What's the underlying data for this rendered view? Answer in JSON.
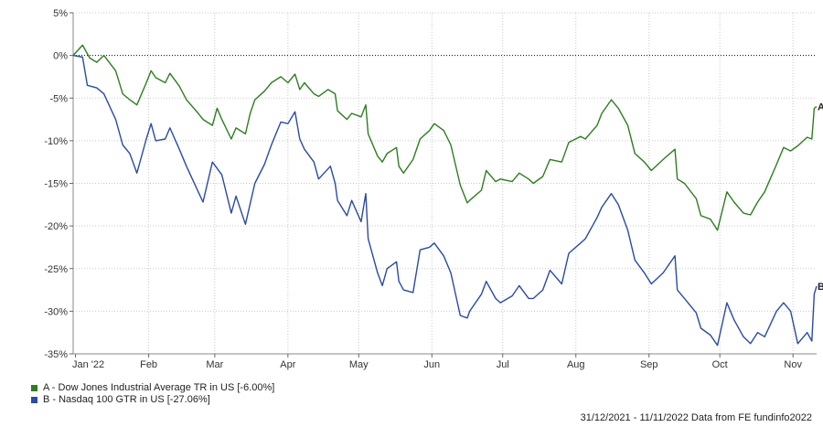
{
  "chart_data": {
    "type": "line",
    "ylim": [
      -35,
      5
    ],
    "y_ticks": [
      "5%",
      "0%",
      "-5%",
      "-10%",
      "-15%",
      "-20%",
      "-25%",
      "-30%",
      "-35%"
    ],
    "x_ticks": [
      "Jan '22",
      "Feb",
      "Mar",
      "Apr",
      "May",
      "Jun",
      "Jul",
      "Aug",
      "Sep",
      "Oct",
      "Nov"
    ],
    "grid": true,
    "zero_line": "dotted",
    "legend_position": "bottom-left",
    "series": [
      {
        "name": "A - Dow Jones Industrial Average TR in US [-6.00%]",
        "end_label": "A",
        "color": "#2e7d1f",
        "points": [
          [
            "2021-12-31",
            0
          ],
          [
            "2022-01-04",
            1.2
          ],
          [
            "2022-01-07",
            -0.3
          ],
          [
            "2022-01-10",
            -0.8
          ],
          [
            "2022-01-13",
            0
          ],
          [
            "2022-01-18",
            -1.8
          ],
          [
            "2022-01-21",
            -4.5
          ],
          [
            "2022-01-24",
            -5.2
          ],
          [
            "2022-01-27",
            -5.8
          ],
          [
            "2022-01-31",
            -3.2
          ],
          [
            "2022-02-02",
            -1.8
          ],
          [
            "2022-02-04",
            -2.6
          ],
          [
            "2022-02-08",
            -3.2
          ],
          [
            "2022-02-10",
            -2.1
          ],
          [
            "2022-02-14",
            -3.6
          ],
          [
            "2022-02-17",
            -5.2
          ],
          [
            "2022-02-22",
            -6.8
          ],
          [
            "2022-02-24",
            -7.5
          ],
          [
            "2022-02-28",
            -8.2
          ],
          [
            "2022-03-02",
            -6.2
          ],
          [
            "2022-03-04",
            -7.5
          ],
          [
            "2022-03-08",
            -9.8
          ],
          [
            "2022-03-10",
            -8.5
          ],
          [
            "2022-03-14",
            -9.2
          ],
          [
            "2022-03-16",
            -6.8
          ],
          [
            "2022-03-18",
            -5.2
          ],
          [
            "2022-03-22",
            -4.2
          ],
          [
            "2022-03-25",
            -3.2
          ],
          [
            "2022-03-29",
            -2.5
          ],
          [
            "2022-04-01",
            -3.2
          ],
          [
            "2022-04-04",
            -2.2
          ],
          [
            "2022-04-06",
            -4.0
          ],
          [
            "2022-04-08",
            -3.2
          ],
          [
            "2022-04-12",
            -4.5
          ],
          [
            "2022-04-14",
            -4.8
          ],
          [
            "2022-04-18",
            -4.0
          ],
          [
            "2022-04-21",
            -4.5
          ],
          [
            "2022-04-22",
            -6.5
          ],
          [
            "2022-04-26",
            -7.5
          ],
          [
            "2022-04-28",
            -6.8
          ],
          [
            "2022-05-02",
            -7.2
          ],
          [
            "2022-05-04",
            -5.8
          ],
          [
            "2022-05-05",
            -9.2
          ],
          [
            "2022-05-09",
            -11.8
          ],
          [
            "2022-05-11",
            -12.5
          ],
          [
            "2022-05-13",
            -11.5
          ],
          [
            "2022-05-17",
            -10.8
          ],
          [
            "2022-05-18",
            -13.0
          ],
          [
            "2022-05-20",
            -13.8
          ],
          [
            "2022-05-24",
            -12.2
          ],
          [
            "2022-05-27",
            -9.8
          ],
          [
            "2022-05-31",
            -8.8
          ],
          [
            "2022-06-02",
            -8.0
          ],
          [
            "2022-06-06",
            -8.8
          ],
          [
            "2022-06-09",
            -10.5
          ],
          [
            "2022-06-13",
            -15.2
          ],
          [
            "2022-06-16",
            -17.3
          ],
          [
            "2022-06-17",
            -17.0
          ],
          [
            "2022-06-22",
            -15.8
          ],
          [
            "2022-06-24",
            -13.5
          ],
          [
            "2022-06-28",
            -14.8
          ],
          [
            "2022-06-30",
            -14.5
          ],
          [
            "2022-07-05",
            -14.8
          ],
          [
            "2022-07-08",
            -13.8
          ],
          [
            "2022-07-12",
            -14.5
          ],
          [
            "2022-07-14",
            -15.0
          ],
          [
            "2022-07-18",
            -14.2
          ],
          [
            "2022-07-21",
            -12.2
          ],
          [
            "2022-07-26",
            -12.5
          ],
          [
            "2022-07-29",
            -10.2
          ],
          [
            "2022-08-03",
            -9.5
          ],
          [
            "2022-08-05",
            -9.8
          ],
          [
            "2022-08-10",
            -8.2
          ],
          [
            "2022-08-12",
            -6.8
          ],
          [
            "2022-08-16",
            -5.2
          ],
          [
            "2022-08-19",
            -6.2
          ],
          [
            "2022-08-23",
            -8.2
          ],
          [
            "2022-08-26",
            -11.5
          ],
          [
            "2022-08-30",
            -12.5
          ],
          [
            "2022-09-02",
            -13.5
          ],
          [
            "2022-09-07",
            -12.2
          ],
          [
            "2022-09-12",
            -11.0
          ],
          [
            "2022-09-13",
            -14.5
          ],
          [
            "2022-09-16",
            -15.0
          ],
          [
            "2022-09-21",
            -16.8
          ],
          [
            "2022-09-23",
            -18.8
          ],
          [
            "2022-09-27",
            -19.2
          ],
          [
            "2022-09-30",
            -20.5
          ],
          [
            "2022-10-04",
            -16.0
          ],
          [
            "2022-10-07",
            -17.2
          ],
          [
            "2022-10-11",
            -18.5
          ],
          [
            "2022-10-14",
            -18.7
          ],
          [
            "2022-10-17",
            -17.2
          ],
          [
            "2022-10-20",
            -16.0
          ],
          [
            "2022-10-25",
            -12.8
          ],
          [
            "2022-10-28",
            -10.8
          ],
          [
            "2022-10-31",
            -11.2
          ],
          [
            "2022-11-03",
            -10.6
          ],
          [
            "2022-11-07",
            -9.6
          ],
          [
            "2022-11-09",
            -9.8
          ],
          [
            "2022-11-10",
            -6.2
          ],
          [
            "2022-11-11",
            -6.0
          ]
        ]
      },
      {
        "name": "B - Nasdaq 100 GTR in US [-27.06%]",
        "end_label": "B",
        "color": "#2a4aa5",
        "points": [
          [
            "2021-12-31",
            0
          ],
          [
            "2022-01-04",
            -0.2
          ],
          [
            "2022-01-06",
            -3.5
          ],
          [
            "2022-01-10",
            -3.8
          ],
          [
            "2022-01-13",
            -4.5
          ],
          [
            "2022-01-18",
            -7.5
          ],
          [
            "2022-01-21",
            -10.5
          ],
          [
            "2022-01-24",
            -11.5
          ],
          [
            "2022-01-27",
            -13.8
          ],
          [
            "2022-01-31",
            -9.8
          ],
          [
            "2022-02-02",
            -8.0
          ],
          [
            "2022-02-04",
            -10.0
          ],
          [
            "2022-02-08",
            -9.8
          ],
          [
            "2022-02-10",
            -8.5
          ],
          [
            "2022-02-14",
            -11.0
          ],
          [
            "2022-02-17",
            -13.0
          ],
          [
            "2022-02-22",
            -16.0
          ],
          [
            "2022-02-24",
            -17.2
          ],
          [
            "2022-02-28",
            -12.5
          ],
          [
            "2022-03-04",
            -14.0
          ],
          [
            "2022-03-08",
            -18.5
          ],
          [
            "2022-03-10",
            -16.5
          ],
          [
            "2022-03-14",
            -19.8
          ],
          [
            "2022-03-18",
            -15.0
          ],
          [
            "2022-03-22",
            -12.8
          ],
          [
            "2022-03-25",
            -10.5
          ],
          [
            "2022-03-29",
            -7.8
          ],
          [
            "2022-04-01",
            -8.0
          ],
          [
            "2022-04-04",
            -6.6
          ],
          [
            "2022-04-06",
            -9.8
          ],
          [
            "2022-04-08",
            -11.0
          ],
          [
            "2022-04-12",
            -12.5
          ],
          [
            "2022-04-14",
            -14.5
          ],
          [
            "2022-04-19",
            -13.0
          ],
          [
            "2022-04-21",
            -15.0
          ],
          [
            "2022-04-22",
            -17.0
          ],
          [
            "2022-04-26",
            -18.8
          ],
          [
            "2022-04-28",
            -17.0
          ],
          [
            "2022-05-02",
            -19.5
          ],
          [
            "2022-05-04",
            -16.2
          ],
          [
            "2022-05-05",
            -21.5
          ],
          [
            "2022-05-09",
            -25.5
          ],
          [
            "2022-05-11",
            -27.0
          ],
          [
            "2022-05-13",
            -25.0
          ],
          [
            "2022-05-17",
            -24.2
          ],
          [
            "2022-05-18",
            -26.5
          ],
          [
            "2022-05-20",
            -27.5
          ],
          [
            "2022-05-24",
            -27.8
          ],
          [
            "2022-05-27",
            -22.8
          ],
          [
            "2022-05-31",
            -22.5
          ],
          [
            "2022-06-02",
            -22.0
          ],
          [
            "2022-06-06",
            -23.5
          ],
          [
            "2022-06-09",
            -25.5
          ],
          [
            "2022-06-13",
            -30.5
          ],
          [
            "2022-06-16",
            -30.8
          ],
          [
            "2022-06-17",
            -30.0
          ],
          [
            "2022-06-22",
            -28.0
          ],
          [
            "2022-06-24",
            -26.5
          ],
          [
            "2022-06-28",
            -28.5
          ],
          [
            "2022-06-30",
            -29.0
          ],
          [
            "2022-07-05",
            -28.2
          ],
          [
            "2022-07-08",
            -27.0
          ],
          [
            "2022-07-12",
            -28.5
          ],
          [
            "2022-07-14",
            -28.5
          ],
          [
            "2022-07-18",
            -27.5
          ],
          [
            "2022-07-21",
            -25.2
          ],
          [
            "2022-07-26",
            -26.8
          ],
          [
            "2022-07-29",
            -23.2
          ],
          [
            "2022-08-03",
            -22.0
          ],
          [
            "2022-08-05",
            -21.5
          ],
          [
            "2022-08-10",
            -19.0
          ],
          [
            "2022-08-12",
            -17.8
          ],
          [
            "2022-08-16",
            -16.2
          ],
          [
            "2022-08-19",
            -17.5
          ],
          [
            "2022-08-23",
            -20.5
          ],
          [
            "2022-08-26",
            -24.0
          ],
          [
            "2022-08-30",
            -25.5
          ],
          [
            "2022-09-02",
            -26.8
          ],
          [
            "2022-09-07",
            -25.5
          ],
          [
            "2022-09-12",
            -23.5
          ],
          [
            "2022-09-13",
            -27.5
          ],
          [
            "2022-09-16",
            -28.5
          ],
          [
            "2022-09-21",
            -30.2
          ],
          [
            "2022-09-23",
            -32.0
          ],
          [
            "2022-09-27",
            -32.8
          ],
          [
            "2022-09-30",
            -34.0
          ],
          [
            "2022-10-04",
            -29.0
          ],
          [
            "2022-10-07",
            -31.0
          ],
          [
            "2022-10-11",
            -33.0
          ],
          [
            "2022-10-14",
            -33.8
          ],
          [
            "2022-10-17",
            -32.5
          ],
          [
            "2022-10-20",
            -33.0
          ],
          [
            "2022-10-25",
            -30.0
          ],
          [
            "2022-10-28",
            -29.0
          ],
          [
            "2022-10-31",
            -30.0
          ],
          [
            "2022-11-03",
            -33.8
          ],
          [
            "2022-11-07",
            -32.5
          ],
          [
            "2022-11-09",
            -33.5
          ],
          [
            "2022-11-10",
            -28.0
          ],
          [
            "2022-11-11",
            -27.06
          ]
        ]
      }
    ]
  },
  "footer": "31/12/2021 - 11/11/2022 Data from FE fundinfo2022"
}
